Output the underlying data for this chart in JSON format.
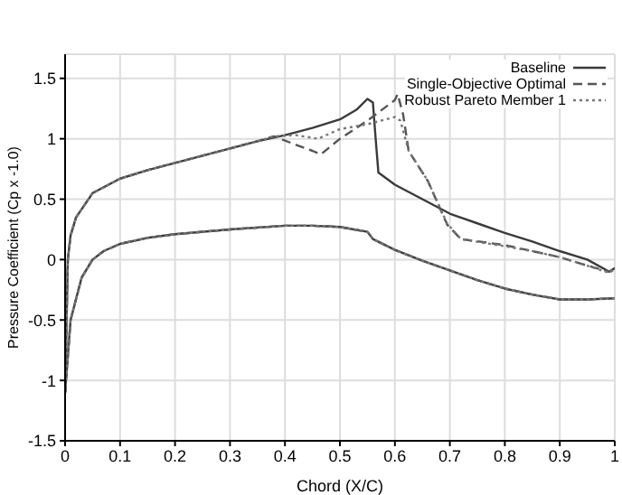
{
  "chart_data": {
    "type": "line",
    "xlabel": "Chord (X/C)",
    "ylabel": "Pressure Coefficient (Cp x -1.0)",
    "xlim": [
      0,
      1
    ],
    "xticks": [
      0,
      0.1,
      0.2,
      0.3,
      0.4,
      0.5,
      0.6,
      0.7,
      0.8,
      0.9,
      1
    ],
    "ylim": [
      -1.5,
      1.7
    ],
    "yticks": [
      -1.5,
      -1,
      -0.5,
      0,
      0.5,
      1,
      1.5
    ],
    "grid": true,
    "legend": "top right",
    "marker": "none",
    "series": [
      {
        "name": "Baseline",
        "color": "#3a3a3a",
        "line_style": "solid",
        "x": [
          0,
          0.005,
          0.01,
          0.02,
          0.05,
          0.1,
          0.15,
          0.2,
          0.25,
          0.3,
          0.35,
          0.4,
          0.45,
          0.5,
          0.53,
          0.55,
          0.56,
          0.565,
          0.57,
          0.6,
          0.65,
          0.7,
          0.75,
          0.8,
          0.85,
          0.9,
          0.95,
          0.99,
          1.0
        ],
        "values": [
          -1.1,
          0.0,
          0.2,
          0.35,
          0.55,
          0.67,
          0.74,
          0.8,
          0.86,
          0.92,
          0.98,
          1.03,
          1.09,
          1.16,
          1.24,
          1.33,
          1.3,
          1.0,
          0.72,
          0.62,
          0.5,
          0.38,
          0.3,
          0.22,
          0.15,
          0.07,
          0.0,
          -0.1,
          -0.07
        ]
      },
      {
        "name": "Single-Objective Optimal",
        "color": "#555555",
        "line_style": "dashed",
        "x": [
          0,
          0.005,
          0.01,
          0.02,
          0.05,
          0.1,
          0.15,
          0.2,
          0.25,
          0.3,
          0.35,
          0.38,
          0.42,
          0.45,
          0.465,
          0.5,
          0.55,
          0.6,
          0.605,
          0.615,
          0.625,
          0.66,
          0.695,
          0.72,
          0.8,
          0.85,
          0.9,
          0.95,
          0.99,
          1.0
        ],
        "values": [
          -1.1,
          0.0,
          0.2,
          0.35,
          0.55,
          0.67,
          0.74,
          0.8,
          0.86,
          0.92,
          0.98,
          1.02,
          0.95,
          0.9,
          0.87,
          1.0,
          1.15,
          1.32,
          1.37,
          1.2,
          0.9,
          0.65,
          0.29,
          0.17,
          0.12,
          0.07,
          0.02,
          -0.05,
          -0.1,
          -0.08
        ]
      },
      {
        "name": "Robust Pareto Member 1",
        "color": "#777777",
        "line_style": "dotted",
        "x": [
          0,
          0.005,
          0.01,
          0.02,
          0.05,
          0.1,
          0.15,
          0.2,
          0.25,
          0.3,
          0.35,
          0.38,
          0.42,
          0.46,
          0.5,
          0.55,
          0.6,
          0.61,
          0.625,
          0.66,
          0.695,
          0.72,
          0.8,
          0.85,
          0.9,
          0.95,
          0.99,
          1.0
        ],
        "values": [
          -1.1,
          0.0,
          0.2,
          0.35,
          0.55,
          0.67,
          0.74,
          0.8,
          0.86,
          0.92,
          0.98,
          1.02,
          1.03,
          1.0,
          1.08,
          1.12,
          1.18,
          1.15,
          0.9,
          0.65,
          0.3,
          0.17,
          0.11,
          0.07,
          0.02,
          -0.05,
          -0.11,
          -0.08
        ]
      },
      {
        "color": "#3a3a3a",
        "line_style": "solid",
        "x": [
          0,
          0.01,
          0.03,
          0.05,
          0.07,
          0.1,
          0.15,
          0.2,
          0.3,
          0.4,
          0.45,
          0.5,
          0.55,
          0.56,
          0.6,
          0.65,
          0.7,
          0.75,
          0.8,
          0.85,
          0.9,
          0.95,
          1.0
        ],
        "values": [
          -1.1,
          -0.5,
          -0.15,
          0.0,
          0.07,
          0.13,
          0.18,
          0.21,
          0.25,
          0.28,
          0.28,
          0.27,
          0.23,
          0.17,
          0.08,
          -0.01,
          -0.09,
          -0.17,
          -0.24,
          -0.29,
          -0.33,
          -0.33,
          -0.32
        ]
      },
      {
        "color": "#555555",
        "line_style": "dashed",
        "x": [
          0,
          0.01,
          0.03,
          0.05,
          0.07,
          0.1,
          0.15,
          0.2,
          0.3,
          0.4,
          0.45,
          0.5,
          0.55,
          0.56,
          0.6,
          0.65,
          0.7,
          0.75,
          0.8,
          0.85,
          0.9,
          0.95,
          1.0
        ],
        "values": [
          -1.1,
          -0.5,
          -0.15,
          0.0,
          0.07,
          0.13,
          0.18,
          0.21,
          0.25,
          0.28,
          0.28,
          0.27,
          0.23,
          0.17,
          0.08,
          -0.01,
          -0.09,
          -0.17,
          -0.24,
          -0.29,
          -0.33,
          -0.33,
          -0.32
        ]
      },
      {
        "color": "#777777",
        "line_style": "dotted",
        "x": [
          0,
          0.01,
          0.03,
          0.05,
          0.07,
          0.1,
          0.15,
          0.2,
          0.3,
          0.4,
          0.45,
          0.5,
          0.55,
          0.56,
          0.6,
          0.65,
          0.7,
          0.75,
          0.8,
          0.85,
          0.9,
          0.95,
          1.0
        ],
        "values": [
          -1.1,
          -0.5,
          -0.15,
          0.0,
          0.07,
          0.13,
          0.18,
          0.21,
          0.25,
          0.28,
          0.28,
          0.27,
          0.23,
          0.17,
          0.08,
          -0.01,
          -0.09,
          -0.17,
          -0.24,
          -0.29,
          -0.33,
          -0.33,
          -0.32
        ]
      }
    ]
  }
}
